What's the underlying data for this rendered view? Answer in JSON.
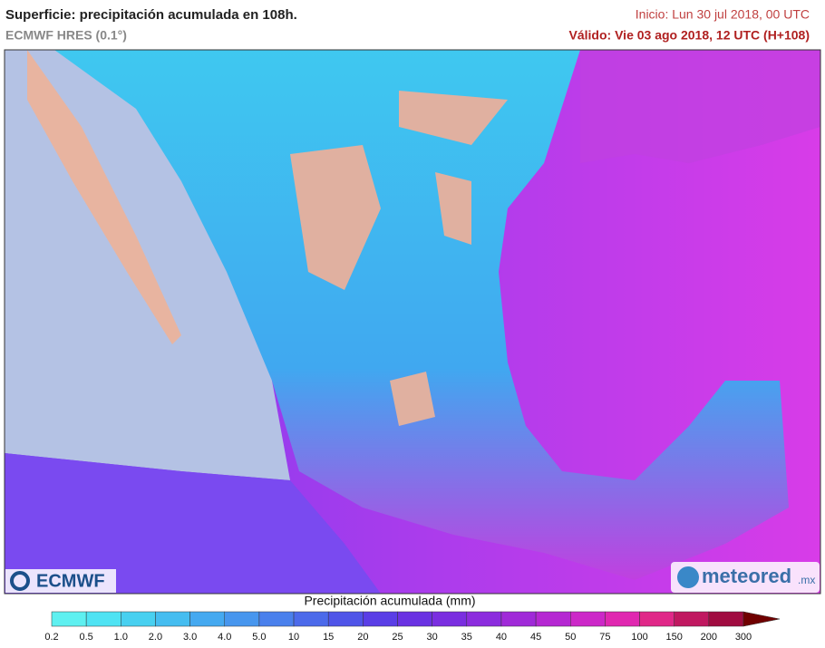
{
  "header": {
    "title": "Superficie: precipitación acumulada en 108h.",
    "model": "ECMWF HRES (0.1°)",
    "init": "Inicio: Lun 30 jul 2018, 00 UTC",
    "valid": "Válido: Vie 03 ago 2018, 12 UTC (H+108)"
  },
  "logos": {
    "left": "ECMWF",
    "right": "meteored",
    "right_suffix": ".mx"
  },
  "legend": {
    "label": "Precipitación acumulada (mm)",
    "ticks": [
      "0.2",
      "0.5",
      "1.0",
      "2.0",
      "3.0",
      "4.0",
      "5.0",
      "10",
      "15",
      "20",
      "25",
      "30",
      "35",
      "40",
      "45",
      "50",
      "75",
      "100",
      "150",
      "200",
      "300"
    ],
    "colors": [
      "#5ef0f0",
      "#4fe3f3",
      "#48d0f0",
      "#45bdf0",
      "#45a9f0",
      "#4796ee",
      "#4a80ec",
      "#4c6aea",
      "#4f54e8",
      "#5a3ee6",
      "#6a32e2",
      "#7a2ee0",
      "#8c2cde",
      "#a02ad8",
      "#b528d2",
      "#cc28c8",
      "#e028b0",
      "#e02888",
      "#c01860",
      "#a00c40",
      "#700000"
    ]
  }
}
